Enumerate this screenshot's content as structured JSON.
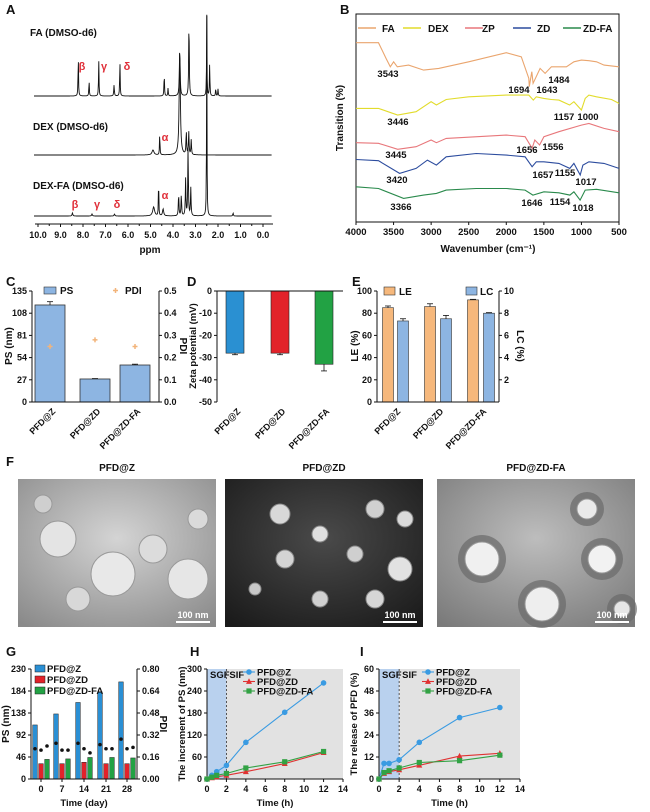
{
  "panel_letters": [
    "A",
    "B",
    "C",
    "D",
    "E",
    "F",
    "G",
    "H",
    "I"
  ],
  "chart_data": [
    {
      "type": "line",
      "panel": "A",
      "xlabel": "ppm",
      "xlim": [
        10.0,
        0.0
      ],
      "x_ticks": [
        "10.0",
        "9.0",
        "8.0",
        "7.0",
        "6.0",
        "5.0",
        "4.0",
        "3.0",
        "2.0",
        "1.0",
        "0.0"
      ],
      "series": [
        {
          "name": "FA (DMSO-d6)",
          "peaks_ppm_intensity_width": [
            [
              8.21,
              41,
              0.012
            ],
            [
              7.73,
              16,
              0.012
            ],
            [
              7.3,
              36,
              0.012
            ],
            [
              6.62,
              11,
              0.015
            ],
            [
              6.36,
              36,
              0.012
            ],
            [
              4.39,
              24,
              0.012
            ],
            [
              4.22,
              8,
              0.012
            ],
            [
              3.7,
              47,
              0.02
            ],
            [
              3.29,
              79,
              0.015
            ],
            [
              2.5,
              85,
              0.01
            ],
            [
              2.37,
              33,
              0.012
            ],
            [
              2.1,
              8,
              0.012
            ],
            [
              2.0,
              7,
              0.012
            ]
          ],
          "annotations": [
            "β",
            "γ",
            "δ"
          ]
        },
        {
          "name": "DEX (DMSO-d6)",
          "peaks_ppm_intensity_width": [
            [
              4.89,
              5,
              0.05
            ],
            [
              4.59,
              22,
              0.012
            ],
            [
              3.7,
              107,
              0.03
            ],
            [
              3.41,
              24,
              0.015
            ],
            [
              3.3,
              23,
              0.015
            ],
            [
              3.19,
              15,
              0.015
            ]
          ],
          "annotations": [
            "α"
          ]
        },
        {
          "name": "DEX-FA  (DMSO-d6)",
          "peaks_ppm_intensity_width": [
            [
              8.47,
              3,
              0.02
            ],
            [
              7.6,
              2,
              0.02
            ],
            [
              6.6,
              2,
              0.02
            ],
            [
              4.86,
              9,
              0.05
            ],
            [
              4.64,
              43,
              0.01
            ],
            [
              4.44,
              7,
              0.03
            ],
            [
              3.75,
              23,
              0.015
            ],
            [
              3.63,
              22,
              0.015
            ],
            [
              3.44,
              37,
              0.015
            ],
            [
              3.33,
              70,
              0.015
            ],
            [
              3.21,
              28,
              0.015
            ],
            [
              2.5,
              210,
              0.01
            ],
            [
              1.33,
              3,
              0.015
            ]
          ],
          "annotations": [
            "α",
            "β",
            "γ",
            "δ"
          ]
        }
      ]
    },
    {
      "type": "line",
      "panel": "B",
      "xlabel": "Wavenumber (cm⁻¹)",
      "ylabel": "Transition (%)",
      "xlim": [
        4000,
        500
      ],
      "x_ticks": [
        "4000",
        "3500",
        "3000",
        "2500",
        "2000",
        "1500",
        "1000",
        "500"
      ],
      "legend_position": "top",
      "series": [
        {
          "name": "FA",
          "color": "#eaa56e",
          "x": [
            4000,
            3700,
            3600,
            3543,
            3500,
            3450,
            3300,
            3100,
            2900,
            2500,
            2000,
            1800,
            1700,
            1694,
            1660,
            1643,
            1550,
            1484,
            1400,
            1200,
            1100,
            1000,
            900,
            800,
            700,
            500
          ],
          "y": [
            86.6,
            86.6,
            79.0,
            75.0,
            77.4,
            75.0,
            75.8,
            73.4,
            74.2,
            77.4,
            81.8,
            79.8,
            69.4,
            65.4,
            72.6,
            67.0,
            74.2,
            71.8,
            75.0,
            75.0,
            77.4,
            78.2,
            77.9,
            77.4,
            75.8,
            75.0
          ],
          "peak_labels": [
            "3543",
            "1694",
            "1643",
            "1484"
          ]
        },
        {
          "name": "DEX",
          "color": "#e2dc2c",
          "x": [
            4000,
            3700,
            3446,
            3200,
            3000,
            2930,
            2800,
            2500,
            2000,
            1700,
            1640,
            1600,
            1500,
            1400,
            1300,
            1157,
            1100,
            1000,
            950,
            900,
            800,
            600,
            500
          ],
          "y": [
            54.9,
            54.9,
            51.7,
            53.3,
            58.1,
            56.5,
            59.2,
            60.5,
            61.3,
            61.3,
            58.9,
            60.5,
            59.7,
            59.2,
            58.9,
            56.5,
            58.1,
            54.1,
            59.7,
            61.3,
            60.5,
            59.2,
            57.3
          ],
          "peak_labels": [
            "3446",
            "1157",
            "1000"
          ]
        },
        {
          "name": "ZP",
          "color": "#e8777b",
          "x": [
            4000,
            3700,
            3445,
            3200,
            3000,
            2930,
            2800,
            2000,
            1750,
            1656,
            1620,
            1556,
            1500,
            1300,
            1000,
            900,
            700,
            500
          ],
          "y": [
            38.3,
            38.0,
            35.1,
            36.4,
            39.6,
            38.3,
            40.4,
            42.0,
            41.2,
            35.6,
            39.6,
            37.2,
            41.2,
            43.6,
            46.8,
            47.6,
            45.2,
            43.6
          ],
          "peak_labels": [
            "3445",
            "1656",
            "1556"
          ]
        },
        {
          "name": "ZD",
          "color": "#2c4c9e",
          "x": [
            4000,
            3700,
            3420,
            3200,
            3050,
            2930,
            2800,
            2400,
            2000,
            1750,
            1657,
            1600,
            1500,
            1300,
            1155,
            1100,
            1017,
            980,
            900,
            700,
            500
          ],
          "y": [
            30.2,
            29.6,
            23.5,
            25.9,
            29.9,
            27.5,
            31.5,
            33.1,
            32.3,
            31.5,
            26.7,
            29.1,
            29.1,
            28.3,
            25.9,
            28.3,
            22.7,
            27.5,
            29.1,
            28.3,
            25.9
          ],
          "peak_labels": [
            "3420",
            "1657",
            "1155",
            "1017"
          ]
        },
        {
          "name": "ZD-FA",
          "color": "#2a8a4c",
          "x": [
            4000,
            3700,
            3366,
            3100,
            2930,
            2800,
            2400,
            2000,
            1750,
            1646,
            1500,
            1300,
            1154,
            1100,
            1018,
            950,
            800,
            500
          ],
          "y": [
            17.0,
            16.2,
            11.4,
            13.0,
            13.8,
            15.4,
            16.2,
            16.2,
            15.4,
            13.0,
            14.6,
            14.1,
            13.0,
            14.6,
            10.6,
            15.4,
            15.8,
            14.1
          ],
          "peak_labels": [
            "3366",
            "1646",
            "1154",
            "1018"
          ]
        }
      ]
    },
    {
      "type": "bar",
      "panel": "C",
      "categories": [
        "PFD@Z",
        "PFD@ZD",
        "PFD@ZD-FA"
      ],
      "ylabel": "PS (nm)",
      "ylim": [
        0,
        135
      ],
      "y_ticks": [
        "0",
        "27",
        "54",
        "81",
        "108",
        "135"
      ],
      "y2label": "PDI",
      "y2lim": [
        0,
        0.5
      ],
      "y2_ticks": [
        "0.0",
        "0.1",
        "0.2",
        "0.3",
        "0.4",
        "0.5"
      ],
      "series": [
        {
          "name": "PS",
          "color": "#8db5e2",
          "values": [
            118,
            28,
            45
          ],
          "errors": [
            4,
            0.5,
            1
          ]
        },
        {
          "name": "PDI",
          "color": "#f2b47a",
          "values": [
            0.25,
            0.28,
            0.25
          ],
          "errors": [
            0.02,
            0.015,
            0.005
          ]
        }
      ]
    },
    {
      "type": "bar",
      "panel": "D",
      "categories": [
        "PFD@Z",
        "PFD@ZD",
        "PFD@ZD-FA"
      ],
      "ylabel": "Zeta potential (mV)",
      "ylim": [
        -50,
        0
      ],
      "y_ticks": [
        "0",
        "-10",
        "-20",
        "-30",
        "-40",
        "-50"
      ],
      "values": [
        -28,
        -28,
        -33
      ],
      "errors": [
        0.7,
        0.7,
        3
      ],
      "colors": [
        "#2a90d2",
        "#e2222a",
        "#22a244"
      ]
    },
    {
      "type": "bar",
      "panel": "E",
      "categories": [
        "PFD@Z",
        "PFD@ZD",
        "PFD@ZD-FA"
      ],
      "ylabel": "LE (%)",
      "ylim": [
        0,
        100
      ],
      "y_ticks": [
        "0",
        "20",
        "40",
        "60",
        "80",
        "100"
      ],
      "y2label": "LC (%)",
      "y2lim": [
        0,
        10
      ],
      "y2_ticks": [
        "2",
        "4",
        "6",
        "8",
        "10"
      ],
      "series": [
        {
          "name": "LE",
          "color": "#f6b87c",
          "values": [
            85,
            86,
            92
          ],
          "errors": [
            1.5,
            2.5,
            0.5
          ]
        },
        {
          "name": "LC",
          "color": "#8db5e2",
          "values": [
            7.3,
            7.5,
            8.0
          ],
          "errors": [
            0.2,
            0.3,
            0.05
          ]
        }
      ]
    },
    {
      "type": "bar",
      "panel": "G",
      "categories": [
        "0",
        "7",
        "14",
        "21",
        "28"
      ],
      "xlabel": "Time (day)",
      "ylabel": "PS (nm)",
      "ylim": [
        0,
        230
      ],
      "y_ticks": [
        "0",
        "46",
        "92",
        "138",
        "184",
        "230"
      ],
      "y2label": "PDI",
      "y2lim": [
        0,
        0.8
      ],
      "y2_ticks": [
        "0.00",
        "0.16",
        "0.32",
        "0.48",
        "0.64",
        "0.80"
      ],
      "series": [
        {
          "name": "PFD@Z",
          "color": "#2a8fd4",
          "values": [
            113,
            136,
            160,
            182,
            203
          ],
          "pdi": [
            0.22,
            0.26,
            0.26,
            0.25,
            0.29
          ]
        },
        {
          "name": "PFD@ZD",
          "color": "#e2222a",
          "values": [
            32,
            32,
            35,
            32,
            32
          ],
          "pdi": [
            0.21,
            0.21,
            0.22,
            0.22,
            0.22
          ]
        },
        {
          "name": "PFD@ZD-FA",
          "color": "#22a244",
          "values": [
            41,
            42,
            45,
            45,
            44
          ],
          "pdi": [
            0.24,
            0.21,
            0.19,
            0.22,
            0.23
          ]
        }
      ]
    },
    {
      "type": "line",
      "panel": "H",
      "xlabel": "Time (h)",
      "ylabel": "The increment of PS (nm)",
      "xlim": [
        0,
        14
      ],
      "ylim": [
        0,
        300
      ],
      "x_ticks": [
        "0",
        "2",
        "4",
        "6",
        "8",
        "10",
        "12",
        "14"
      ],
      "y_ticks": [
        "0",
        "60",
        "120",
        "180",
        "240",
        "300"
      ],
      "regions": [
        {
          "label": "SGF",
          "from": 0,
          "to": 2,
          "color": "#b9d1ee"
        },
        {
          "label": "SIF",
          "from": 2,
          "to": 14,
          "color": "#e2e2e2"
        }
      ],
      "x": [
        0,
        0.5,
        1,
        2,
        4,
        8,
        12
      ],
      "series": [
        {
          "name": "PFD@Z",
          "color": "#3a9be2",
          "marker": "circle",
          "values": [
            0,
            10,
            20,
            37,
            100,
            182,
            262
          ]
        },
        {
          "name": "PFD@ZD",
          "color": "#e03232",
          "marker": "triangle",
          "values": [
            0,
            3,
            6,
            10,
            20,
            42,
            72
          ]
        },
        {
          "name": "PFD@ZD-FA",
          "color": "#32a244",
          "marker": "square",
          "values": [
            0,
            5,
            10,
            15,
            30,
            47,
            75
          ]
        }
      ]
    },
    {
      "type": "line",
      "panel": "I",
      "xlabel": "Time (h)",
      "ylabel": "The release of PFD (%)",
      "xlim": [
        0,
        14
      ],
      "ylim": [
        0,
        60
      ],
      "x_ticks": [
        "0",
        "2",
        "4",
        "6",
        "8",
        "10",
        "12",
        "14"
      ],
      "y_ticks": [
        "0",
        "12",
        "24",
        "36",
        "48",
        "60"
      ],
      "regions": [
        {
          "label": "SGF",
          "from": 0,
          "to": 2,
          "color": "#b9d1ee"
        },
        {
          "label": "SIF",
          "from": 2,
          "to": 14,
          "color": "#e2e2e2"
        }
      ],
      "x": [
        0,
        0.5,
        1,
        2,
        4,
        8,
        12
      ],
      "series": [
        {
          "name": "PFD@Z",
          "color": "#3a9be2",
          "marker": "circle",
          "values": [
            0,
            8.5,
            8.5,
            10.5,
            20,
            33.5,
            39
          ]
        },
        {
          "name": "PFD@ZD",
          "color": "#e03232",
          "marker": "triangle",
          "values": [
            0,
            3,
            4,
            5,
            7.5,
            12.5,
            14
          ]
        },
        {
          "name": "PFD@ZD-FA",
          "color": "#32a244",
          "marker": "square",
          "values": [
            0,
            3.5,
            4.5,
            6,
            9,
            10,
            13
          ]
        }
      ]
    }
  ],
  "tem_images": [
    {
      "title": "PFD@Z",
      "scale_bar": "100 nm"
    },
    {
      "title": "PFD@ZD",
      "scale_bar": "100 nm"
    },
    {
      "title": "PFD@ZD-FA",
      "scale_bar": "100 nm"
    }
  ],
  "annotation_color": "#e0303a"
}
